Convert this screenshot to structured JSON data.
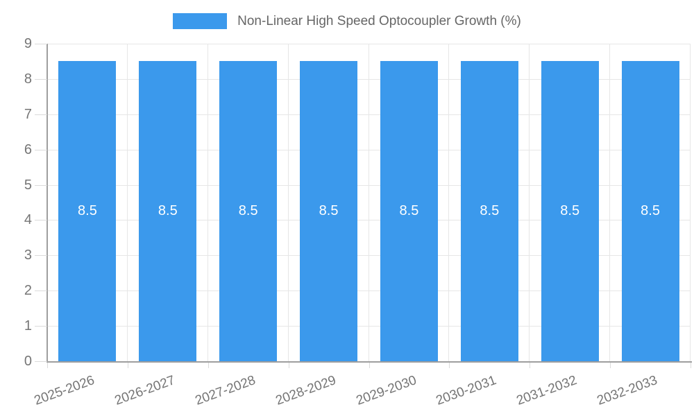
{
  "chart_data": {
    "type": "bar",
    "title": "Non-Linear High Speed Optocoupler Growth (%)",
    "legend": [
      "Non-Linear High Speed Optocoupler Growth (%)"
    ],
    "legend_position": "top",
    "categories": [
      "2025-2026",
      "2026-2027",
      "2027-2028",
      "2028-2029",
      "2029-2030",
      "2030-2031",
      "2031-2032",
      "2032-2033"
    ],
    "values": [
      8.5,
      8.5,
      8.5,
      8.5,
      8.5,
      8.5,
      8.5,
      8.5
    ],
    "bar_value_labels": [
      "8.5",
      "8.5",
      "8.5",
      "8.5",
      "8.5",
      "8.5",
      "8.5",
      "8.5"
    ],
    "xlabel": "",
    "ylabel": "",
    "ylim": [
      0,
      9
    ],
    "y_ticks": [
      0,
      1,
      2,
      3,
      4,
      5,
      6,
      7,
      8,
      9
    ],
    "grid": true,
    "x_label_rotation_deg": -20,
    "colors": {
      "bar": "#3B99EC",
      "grid": "#E6E6E6",
      "axis": "#9E9E9E",
      "tick": "#DBDBDB",
      "axis_text": "#757575",
      "legend_text": "#666666",
      "bar_label": "#FFFFFF",
      "background": "#FFFFFF"
    }
  }
}
